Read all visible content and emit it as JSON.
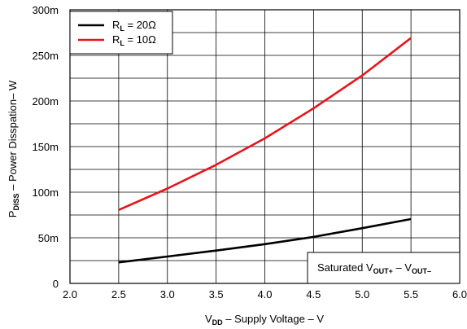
{
  "chart_data": {
    "type": "line",
    "xlabel": {
      "main": "V",
      "sub": "DD",
      "rest": " – Supply Voltage – V"
    },
    "ylabel": {
      "main": "P",
      "sub": "DISS",
      "rest": " – Power Disspation– W"
    },
    "xlim": [
      2.0,
      6.0
    ],
    "ylim": [
      0,
      0.3
    ],
    "x_ticks": [
      2.0,
      2.5,
      3.0,
      3.5,
      4.0,
      4.5,
      5.0,
      5.5,
      6.0
    ],
    "x_tick_labels": [
      "2.0",
      "2.5",
      "3.0",
      "3.5",
      "4.0",
      "4.5",
      "5.0",
      "5.5",
      "6.0"
    ],
    "y_ticks": [
      0,
      0.05,
      0.1,
      0.15,
      0.2,
      0.25,
      0.3
    ],
    "y_tick_labels": [
      "0",
      "50m",
      "100m",
      "150m",
      "200m",
      "250m",
      "300m"
    ],
    "grid": true,
    "legend_position": "top-left",
    "series": [
      {
        "name": {
          "main": "R",
          "sub": "L",
          "rest": " = 20Ω"
        },
        "color": "#000000",
        "x": [
          2.5,
          3.0,
          3.5,
          4.0,
          4.5,
          5.0,
          5.5
        ],
        "y": [
          0.023,
          0.0295,
          0.036,
          0.043,
          0.051,
          0.0605,
          0.0705
        ]
      },
      {
        "name": {
          "main": "R",
          "sub": "L",
          "rest": " = 10Ω"
        },
        "color": "#e8141c",
        "x": [
          2.5,
          3.0,
          3.5,
          4.0,
          4.5,
          5.0,
          5.5
        ],
        "y": [
          0.0805,
          0.104,
          0.13,
          0.159,
          0.192,
          0.228,
          0.269
        ]
      }
    ],
    "annotation": {
      "parts": [
        {
          "text": "Saturated V",
          "sub": false
        },
        {
          "text": "OUT+",
          "sub": true
        },
        {
          "text": " – V",
          "sub": false
        },
        {
          "text": "OUT–",
          "sub": true
        }
      ]
    }
  }
}
